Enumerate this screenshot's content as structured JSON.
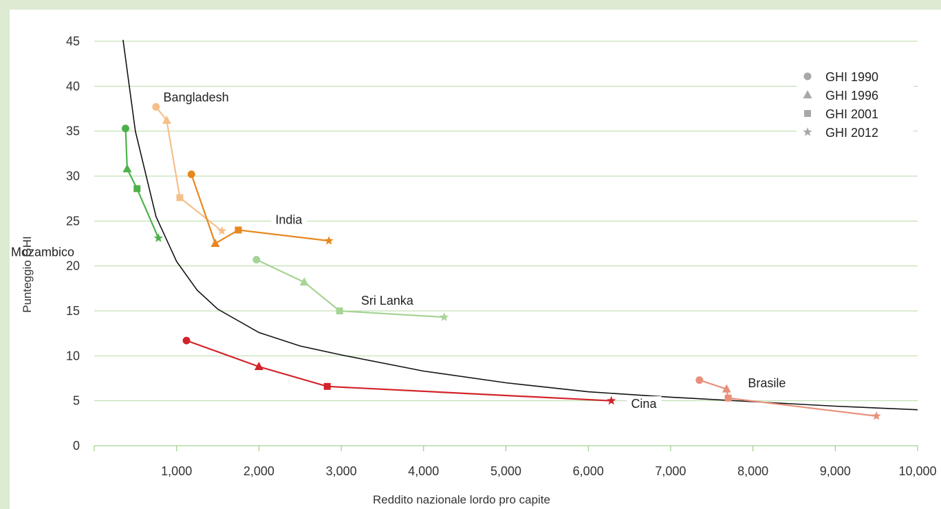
{
  "chart_data": {
    "type": "line",
    "xlabel": "Reddito nazionale lordo pro capite",
    "ylabel": "Punteggio GHI",
    "xlim": [
      0,
      10000
    ],
    "ylim": [
      0,
      45
    ],
    "x_ticks": [
      1000,
      2000,
      3000,
      4000,
      5000,
      6000,
      7000,
      8000,
      9000,
      10000
    ],
    "x_tick_labels": [
      "1,000",
      "2,000",
      "3,000",
      "4,000",
      "5,000",
      "6,000",
      "7,000",
      "8,000",
      "9,000",
      "10,000"
    ],
    "y_ticks": [
      0,
      5,
      10,
      15,
      20,
      25,
      30,
      35,
      40,
      45
    ],
    "y_tick_labels": [
      "0",
      "5",
      "10",
      "15",
      "20",
      "25",
      "30",
      "35",
      "40",
      "45"
    ],
    "grid": "horizontal",
    "legend_position": "top-right",
    "legend": [
      {
        "label": "GHI 1990",
        "marker": "circle"
      },
      {
        "label": "GHI 1996",
        "marker": "triangle"
      },
      {
        "label": "GHI 2001",
        "marker": "square"
      },
      {
        "label": "GHI 2012",
        "marker": "star"
      }
    ],
    "trend_curve": {
      "color": "#111111",
      "points": [
        [
          350,
          45.5
        ],
        [
          500,
          35
        ],
        [
          750,
          25.5
        ],
        [
          1000,
          20.5
        ],
        [
          1250,
          17.3
        ],
        [
          1500,
          15.2
        ],
        [
          2000,
          12.6
        ],
        [
          2500,
          11.1
        ],
        [
          3000,
          10.1
        ],
        [
          4000,
          8.3
        ],
        [
          5000,
          7.0
        ],
        [
          6000,
          6.0
        ],
        [
          7000,
          5.4
        ],
        [
          8000,
          4.9
        ],
        [
          9000,
          4.4
        ],
        [
          10000,
          4.0
        ]
      ]
    },
    "series": [
      {
        "name": "Bangladesh",
        "color": "#f5bf8a",
        "points": [
          {
            "x": 750,
            "y": 37.7,
            "year": "GHI 1990"
          },
          {
            "x": 880,
            "y": 36.2,
            "year": "GHI 1996"
          },
          {
            "x": 1040,
            "y": 27.6,
            "year": "GHI 2001"
          },
          {
            "x": 1550,
            "y": 23.9,
            "year": "GHI 2012"
          }
        ],
        "label_xy": [
          840,
          38.3
        ]
      },
      {
        "name": "India",
        "color": "#e8871e",
        "points": [
          {
            "x": 1180,
            "y": 30.2,
            "year": "GHI 1990"
          },
          {
            "x": 1470,
            "y": 22.5,
            "year": "GHI 1996"
          },
          {
            "x": 1750,
            "y": 24.0,
            "year": "GHI 2001"
          },
          {
            "x": 2850,
            "y": 22.8,
            "year": "GHI 2012"
          }
        ],
        "label_xy": [
          2200,
          24.7
        ]
      },
      {
        "name": "Mozambico",
        "color": "#4cb14a",
        "points": [
          {
            "x": 380,
            "y": 35.3,
            "year": "GHI 1990"
          },
          {
            "x": 400,
            "y": 30.8,
            "year": "GHI 1996"
          },
          {
            "x": 520,
            "y": 28.6,
            "year": "GHI 2001"
          },
          {
            "x": 780,
            "y": 23.1,
            "year": "GHI 2012"
          }
        ],
        "label_xy": [
          0,
          21.1
        ]
      },
      {
        "name": "Sri Lanka",
        "color": "#a6d495",
        "points": [
          {
            "x": 1970,
            "y": 20.7,
            "year": "GHI 1990"
          },
          {
            "x": 2550,
            "y": 18.2,
            "year": "GHI 1996"
          },
          {
            "x": 2980,
            "y": 15.0,
            "year": "GHI 2001"
          },
          {
            "x": 4250,
            "y": 14.3,
            "year": "GHI 2012"
          }
        ],
        "label_xy": [
          3240,
          15.7
        ]
      },
      {
        "name": "Cina",
        "color": "#d2232a",
        "points": [
          {
            "x": 1120,
            "y": 11.7,
            "year": "GHI 1990"
          },
          {
            "x": 2000,
            "y": 8.8,
            "year": "GHI 1996"
          },
          {
            "x": 2830,
            "y": 6.6,
            "year": "GHI 2001"
          },
          {
            "x": 6280,
            "y": 5.0,
            "year": "GHI 2012"
          }
        ],
        "label_xy": [
          6520,
          4.2
        ]
      },
      {
        "name": "Brasile",
        "color": "#e8907a",
        "points": [
          {
            "x": 7350,
            "y": 7.3,
            "year": "GHI 1990"
          },
          {
            "x": 7680,
            "y": 6.3,
            "year": "GHI 1996"
          },
          {
            "x": 7700,
            "y": 5.3,
            "year": "GHI 2001"
          },
          {
            "x": 9500,
            "y": 3.3,
            "year": "GHI 2012"
          }
        ],
        "label_xy": [
          7940,
          6.5
        ]
      }
    ]
  }
}
